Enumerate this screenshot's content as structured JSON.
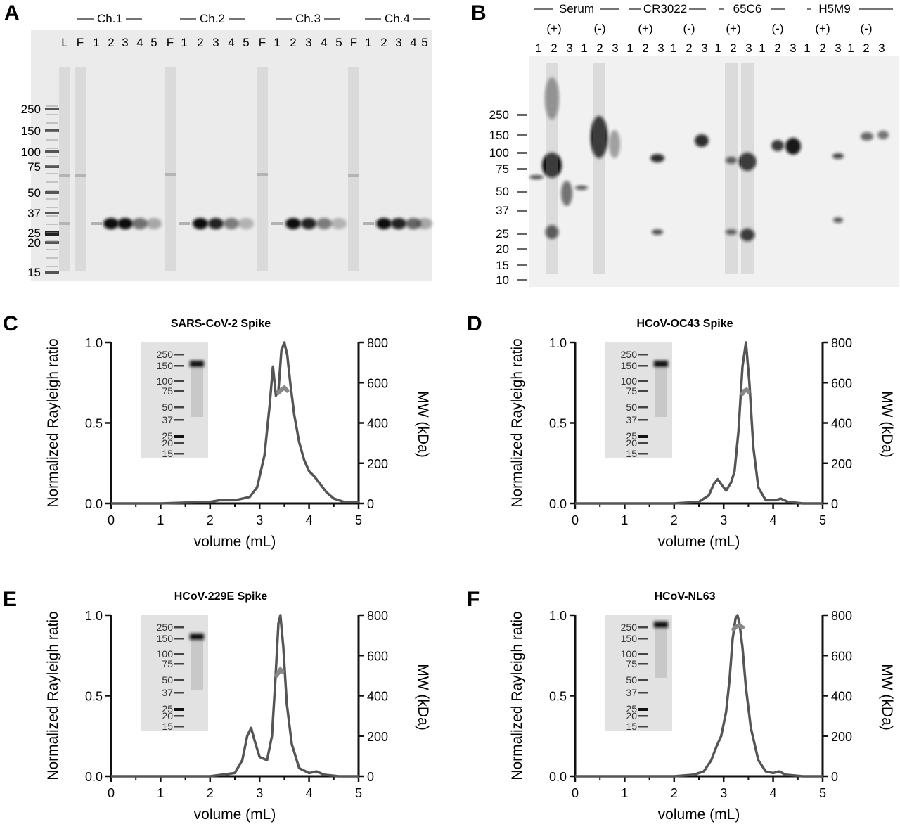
{
  "panel_letters": [
    "A",
    "B",
    "C",
    "D",
    "E",
    "F"
  ],
  "gel_a": {
    "group_labels": [
      "Ch.1",
      "Ch.2",
      "Ch.3",
      "Ch.4"
    ],
    "lane_labels": [
      "L",
      "F",
      "1",
      "2",
      "3",
      "4",
      "5",
      "F",
      "1",
      "2",
      "3",
      "4",
      "5",
      "F",
      "1",
      "2",
      "3",
      "4",
      "5",
      "F",
      "1",
      "2",
      "3",
      "4",
      "5"
    ],
    "marker_labels": [
      "250",
      "150",
      "100",
      "75",
      "50",
      "37",
      "25",
      "20",
      "15"
    ]
  },
  "gel_b": {
    "group_labels": [
      "Serum",
      "CR3022",
      "65C6",
      "H5M9"
    ],
    "condition_labels": [
      "(+)",
      "(-)",
      "(+)",
      "(-)",
      "(+)",
      "(-)",
      "(+)",
      "(-)"
    ],
    "lane_numbers": [
      "1",
      "2",
      "3"
    ],
    "marker_labels": [
      "250",
      "150",
      "100",
      "75",
      "50",
      "37",
      "25",
      "20",
      "15",
      "10"
    ]
  },
  "chart_data": [
    {
      "panel": "C",
      "type": "line",
      "title": "SARS-CoV-2 Spike",
      "xlabel": "volume (mL)",
      "ylabel": "Normalized Rayleigh ratio",
      "y2label": "MW (kDa)",
      "xlim": [
        0,
        5
      ],
      "ylim": [
        0,
        1
      ],
      "y2lim": [
        0,
        800
      ],
      "xticks": [
        "0",
        "1",
        "2",
        "3",
        "4",
        "5"
      ],
      "yticks": [
        "0.0",
        "0.5",
        "1.0"
      ],
      "y2ticks": [
        "0",
        "200",
        "400",
        "600",
        "800"
      ],
      "inset_markers": [
        "250",
        "150",
        "100",
        "75",
        "50",
        "37",
        "25",
        "20",
        "15"
      ],
      "trace": {
        "x": [
          0,
          1,
          2,
          2.2,
          2.5,
          2.8,
          2.95,
          3.1,
          3.2,
          3.27,
          3.33,
          3.38,
          3.44,
          3.5,
          3.56,
          3.62,
          3.7,
          3.8,
          3.9,
          4.0,
          4.1,
          4.2,
          4.35,
          4.5,
          4.7,
          5.0
        ],
        "y": [
          0.0,
          0.0,
          0.01,
          0.02,
          0.02,
          0.04,
          0.1,
          0.3,
          0.6,
          0.85,
          0.67,
          0.7,
          0.95,
          1.0,
          0.92,
          0.75,
          0.55,
          0.38,
          0.27,
          0.2,
          0.17,
          0.13,
          0.07,
          0.03,
          0.01,
          0.01
        ]
      },
      "mw": {
        "x": [
          3.38,
          3.44,
          3.5,
          3.56
        ],
        "y": [
          550,
          565,
          575,
          560
        ]
      }
    },
    {
      "panel": "D",
      "type": "line",
      "title": "HCoV-OC43 Spike",
      "xlabel": "volume (mL)",
      "ylabel": "Normalized Rayleigh ratio",
      "y2label": "MW (kDa)",
      "xlim": [
        0,
        5
      ],
      "ylim": [
        0,
        1
      ],
      "y2lim": [
        0,
        800
      ],
      "xticks": [
        "0",
        "1",
        "2",
        "3",
        "4",
        "5"
      ],
      "yticks": [
        "0.0",
        "0.5",
        "1.0"
      ],
      "y2ticks": [
        "0",
        "200",
        "400",
        "600",
        "800"
      ],
      "inset_markers": [
        "250",
        "150",
        "100",
        "75",
        "50",
        "37",
        "25",
        "20",
        "15"
      ],
      "trace": {
        "x": [
          0,
          1,
          2,
          2.5,
          2.7,
          2.8,
          2.88,
          2.95,
          3.05,
          3.15,
          3.22,
          3.3,
          3.38,
          3.45,
          3.52,
          3.6,
          3.7,
          3.85,
          4.05,
          4.15,
          4.3,
          4.6,
          5.0
        ],
        "y": [
          0.0,
          0.0,
          0.0,
          0.01,
          0.05,
          0.12,
          0.15,
          0.12,
          0.08,
          0.13,
          0.2,
          0.45,
          0.85,
          1.0,
          0.75,
          0.35,
          0.1,
          0.02,
          0.02,
          0.03,
          0.01,
          0.0,
          0.0
        ]
      },
      "mw": {
        "x": [
          3.38,
          3.42,
          3.46,
          3.5
        ],
        "y": [
          545,
          560,
          565,
          555
        ]
      }
    },
    {
      "panel": "E",
      "type": "line",
      "title": "HCoV-229E Spike",
      "xlabel": "volume (mL)",
      "ylabel": "Normalized Rayleigh ratio",
      "y2label": "MW (kDa)",
      "xlim": [
        0,
        5
      ],
      "ylim": [
        0,
        1
      ],
      "y2lim": [
        0,
        800
      ],
      "xticks": [
        "0",
        "1",
        "2",
        "3",
        "4",
        "5"
      ],
      "yticks": [
        "0.0",
        "0.5",
        "1.0"
      ],
      "y2ticks": [
        "0",
        "200",
        "400",
        "600",
        "800"
      ],
      "inset_markers": [
        "250",
        "150",
        "100",
        "75",
        "50",
        "37",
        "25",
        "20",
        "15"
      ],
      "trace": {
        "x": [
          0,
          1,
          2,
          2.5,
          2.65,
          2.75,
          2.83,
          2.9,
          3.0,
          3.15,
          3.25,
          3.32,
          3.38,
          3.42,
          3.48,
          3.55,
          3.65,
          3.8,
          4.0,
          4.15,
          4.3,
          4.6,
          5.0
        ],
        "y": [
          0.0,
          0.0,
          0.0,
          0.02,
          0.1,
          0.25,
          0.3,
          0.22,
          0.12,
          0.1,
          0.25,
          0.6,
          0.95,
          1.0,
          0.8,
          0.45,
          0.2,
          0.05,
          0.02,
          0.03,
          0.01,
          0.0,
          0.0
        ]
      },
      "mw": {
        "x": [
          3.34,
          3.38,
          3.42,
          3.46
        ],
        "y": [
          500,
          515,
          530,
          520
        ]
      }
    },
    {
      "panel": "F",
      "type": "line",
      "title": "HCoV-NL63",
      "xlabel": "volume (mL)",
      "ylabel": "Normalized Rayleigh ratio",
      "y2label": "MW (kDa)",
      "xlim": [
        0,
        5
      ],
      "ylim": [
        0,
        1
      ],
      "y2lim": [
        0,
        800
      ],
      "xticks": [
        "0",
        "1",
        "2",
        "3",
        "4",
        "5"
      ],
      "yticks": [
        "0.0",
        "0.5",
        "1.0"
      ],
      "y2ticks": [
        "0",
        "200",
        "400",
        "600",
        "800"
      ],
      "inset_markers": [
        "250",
        "150",
        "100",
        "75",
        "50",
        "37",
        "25",
        "20",
        "15"
      ],
      "trace": {
        "x": [
          0,
          1,
          2,
          2.4,
          2.6,
          2.75,
          2.85,
          2.95,
          3.05,
          3.12,
          3.18,
          3.24,
          3.28,
          3.32,
          3.38,
          3.45,
          3.55,
          3.7,
          3.85,
          4.0,
          4.12,
          4.25,
          4.6,
          5.0
        ],
        "y": [
          0.0,
          0.0,
          0.0,
          0.01,
          0.03,
          0.1,
          0.18,
          0.25,
          0.4,
          0.6,
          0.85,
          0.98,
          1.0,
          0.95,
          0.8,
          0.55,
          0.3,
          0.1,
          0.03,
          0.02,
          0.03,
          0.01,
          0.0,
          0.0
        ]
      },
      "mw": {
        "x": [
          3.2,
          3.26,
          3.32,
          3.38
        ],
        "y": [
          730,
          745,
          750,
          740
        ]
      }
    }
  ]
}
